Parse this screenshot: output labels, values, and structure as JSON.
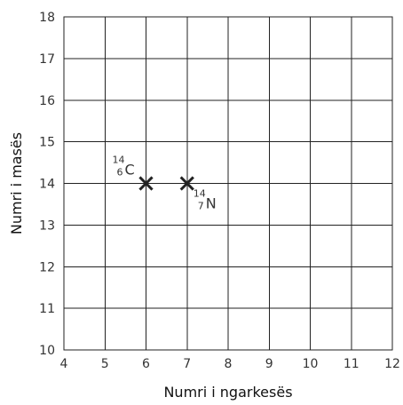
{
  "chart_data": {
    "type": "scatter",
    "xlabel": "Numri i ngarkesës",
    "ylabel": "Numri i masës",
    "xlim": [
      4,
      12
    ],
    "ylim": [
      10,
      18
    ],
    "x_ticks": [
      "4",
      "5",
      "6",
      "7",
      "8",
      "9",
      "10",
      "11",
      "12"
    ],
    "y_ticks": [
      "10",
      "11",
      "12",
      "13",
      "14",
      "15",
      "16",
      "17",
      "18"
    ],
    "grid": true,
    "points": [
      {
        "x": 6,
        "y": 14,
        "symbol": "C",
        "mass_number": "14",
        "atomic_number": "6",
        "label_position": "upper-left"
      },
      {
        "x": 7,
        "y": 14,
        "symbol": "N",
        "mass_number": "14",
        "atomic_number": "7",
        "label_position": "lower-right"
      }
    ]
  }
}
